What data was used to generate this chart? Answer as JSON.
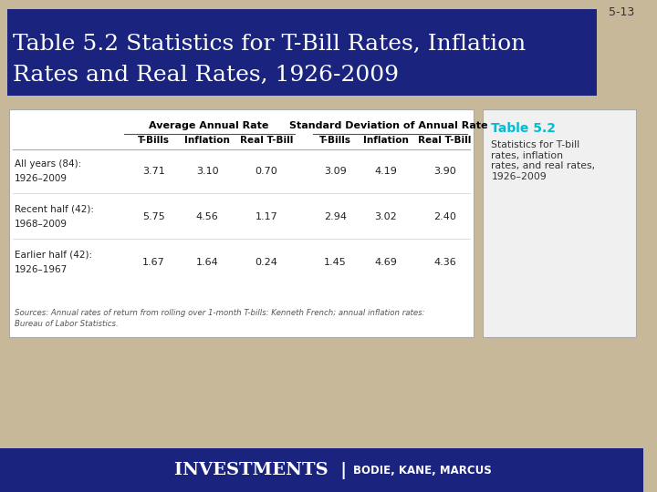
{
  "slide_num": "5-13",
  "title_line1": "Table 5.2 Statistics for T-Bill Rates, Inflation",
  "title_line2": "Rates and Real Rates, 1926-2009",
  "title_bg": "#1a237e",
  "title_fg": "#ffffff",
  "bg_color": "#c8b89a",
  "table_header1": "Average Annual Rate",
  "table_header2": "Standard Deviation of Annual Rate",
  "col_headers": [
    "T-Bills",
    "Inflation",
    "Real T-Bill",
    "T-Bills",
    "Inflation",
    "Real T-Bill"
  ],
  "rows": [
    {
      "label1": "All years (84):",
      "label2": "1926–2009",
      "values": [
        "3.71",
        "3.10",
        "0.70",
        "3.09",
        "4.19",
        "3.90"
      ]
    },
    {
      "label1": "Recent half (42):",
      "label2": "1968–2009",
      "values": [
        "5.75",
        "4.56",
        "1.17",
        "2.94",
        "3.02",
        "2.40"
      ]
    },
    {
      "label1": "Earlier half (42):",
      "label2": "1926–1967",
      "values": [
        "1.67",
        "1.64",
        "0.24",
        "1.45",
        "4.69",
        "4.36"
      ]
    }
  ],
  "source_text1": "Sources: Annual rates of return from rolling over 1-month T-bills: Kenneth French; annual inflation rates:",
  "source_text2": "Bureau of Labor Statistics.",
  "sidebar_title": "Table 5.2",
  "sidebar_text": "Statistics for T-bill\nrates, inflation\nrates, and real rates,\n1926–2009",
  "sidebar_title_color": "#00bcd4",
  "footer_bg": "#1a237e",
  "footer_investments": "INVESTMENTS  |",
  "footer_authors": "BODIE, KANE, MARCUS",
  "footer_fg": "#ffffff"
}
